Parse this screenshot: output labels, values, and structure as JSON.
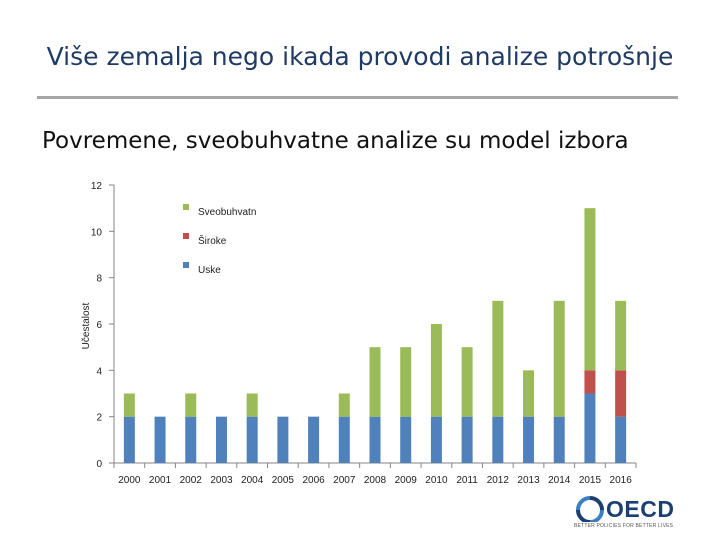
{
  "slide": {
    "title": "Više zemalja nego ikada provodi analize potrošnje",
    "subtitle": "Povremene, sveobuhvatne analize su model izbora"
  },
  "logo": {
    "name": "OECD",
    "tagline": "BETTER POLICIES FOR BETTER LIVES"
  },
  "colors": {
    "sveobuhvatne": "#9bbb59",
    "siroke": "#c0504d",
    "uske": "#4f81bd"
  },
  "chart_data": {
    "type": "bar",
    "stacked": true,
    "ylabel": "Učestalost",
    "ylim": [
      0,
      12
    ],
    "yticks": [
      0,
      2,
      4,
      6,
      8,
      10,
      12
    ],
    "grid": false,
    "legend_position": "top-center",
    "categories": [
      "2000",
      "2001",
      "2002",
      "2003",
      "2004",
      "2005",
      "2006",
      "2007",
      "2008",
      "2009",
      "2010",
      "2011",
      "2012",
      "2013",
      "2014",
      "2015",
      "2016"
    ],
    "series": [
      {
        "name": "Uske",
        "color": "#4f81bd",
        "values": [
          2,
          2,
          2,
          2,
          2,
          2,
          2,
          2,
          2,
          2,
          2,
          2,
          2,
          2,
          2,
          3,
          2
        ]
      },
      {
        "name": "Široke",
        "color": "#c0504d",
        "values": [
          0,
          0,
          0,
          0,
          0,
          0,
          0,
          0,
          0,
          0,
          0,
          0,
          0,
          0,
          0,
          1,
          2
        ]
      },
      {
        "name": "Sveobuhvatn",
        "color": "#9bbb59",
        "values": [
          1,
          0,
          1,
          0,
          1,
          0,
          0,
          1,
          3,
          3,
          4,
          3,
          5,
          2,
          5,
          7,
          3
        ]
      }
    ],
    "legend_order": [
      "Sveobuhvatn",
      "Široke",
      "Uske"
    ]
  }
}
